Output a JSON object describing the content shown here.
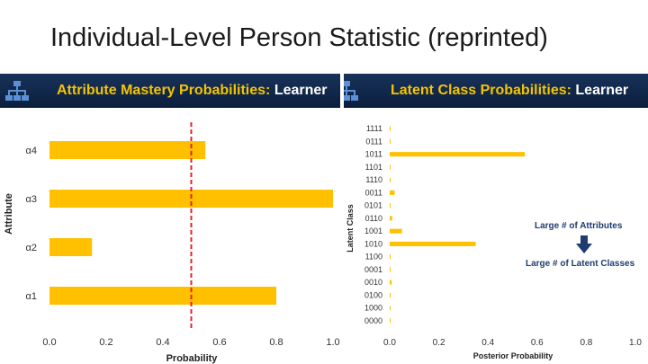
{
  "slide": {
    "title": "Individual-Level Person Statistic (reprinted)"
  },
  "left_panel": {
    "header_accent": "Attribute Mastery Probabilities:",
    "header_name": "Learner",
    "icon": "hierarchy-icon"
  },
  "right_panel": {
    "header_accent": "Latent Class Probabilities:",
    "header_name": "Learner",
    "icon": "hierarchy-icon"
  },
  "annotation": {
    "line1": "Large # of Attributes",
    "line2": "Large # of Latent Classes",
    "arrow": "down-arrow-icon"
  },
  "colors": {
    "bar": "#FFC000",
    "threshold": "#E8202A",
    "header_bg": "#0c1f3d",
    "header_accent": "#f5c400"
  },
  "chart_data": [
    {
      "type": "bar",
      "orientation": "horizontal",
      "categories": [
        "α1",
        "α2",
        "α3",
        "α4"
      ],
      "values": [
        0.8,
        0.15,
        1.0,
        0.55
      ],
      "xlabel": "Probability",
      "ylabel": "Attribute",
      "xlim": [
        0,
        1
      ],
      "xticks": [
        "0.0",
        "0.2",
        "0.4",
        "0.6",
        "0.8",
        "1.0"
      ],
      "threshold": 0.5,
      "grid": false
    },
    {
      "type": "bar",
      "orientation": "horizontal",
      "categories": [
        "0000",
        "1000",
        "0100",
        "0010",
        "0001",
        "1100",
        "1010",
        "1001",
        "0110",
        "0101",
        "0011",
        "1110",
        "1101",
        "1011",
        "0111",
        "1111"
      ],
      "values": [
        0.002,
        0.003,
        0.004,
        0.008,
        0.003,
        0.002,
        0.35,
        0.05,
        0.01,
        0.004,
        0.02,
        0.003,
        0.003,
        0.55,
        0.002,
        0.003
      ],
      "xlabel": "Posterior Probability",
      "ylabel": "Latent Class",
      "xlim": [
        0,
        1
      ],
      "xticks": [
        "0.0",
        "0.2",
        "0.4",
        "0.6",
        "0.8",
        "1.0"
      ],
      "grid": false
    }
  ]
}
